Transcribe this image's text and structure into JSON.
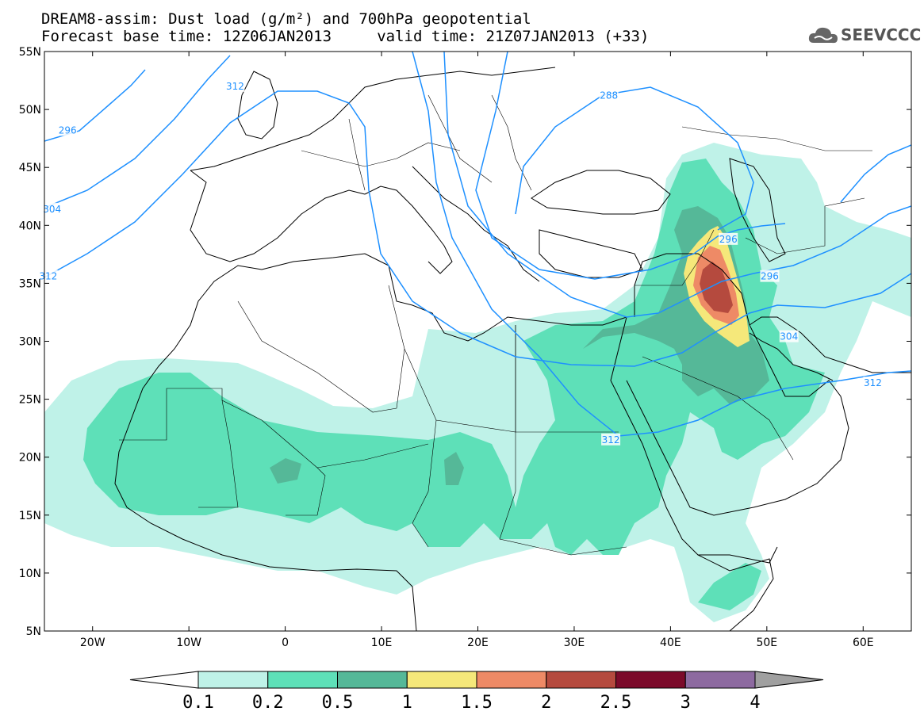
{
  "header": {
    "line1": "DREAM8-assim: Dust load (g/m²) and 700hPa geopotential",
    "line2": "Forecast base time: 12Z06JAN2013     valid time: 21Z07JAN2013 (+33)"
  },
  "logo": {
    "text": "SEEVCCC",
    "icon": "cloud-icon"
  },
  "map": {
    "lon_range": [
      -25,
      65
    ],
    "lat_range": [
      5,
      55
    ],
    "lat_ticks": [
      {
        "v": 55,
        "label": "55N"
      },
      {
        "v": 50,
        "label": "50N"
      },
      {
        "v": 45,
        "label": "45N"
      },
      {
        "v": 40,
        "label": "40N"
      },
      {
        "v": 35,
        "label": "35N"
      },
      {
        "v": 30,
        "label": "30N"
      },
      {
        "v": 25,
        "label": "25N"
      },
      {
        "v": 20,
        "label": "20N"
      },
      {
        "v": 15,
        "label": "15N"
      },
      {
        "v": 10,
        "label": "10N"
      },
      {
        "v": 5,
        "label": "5N"
      }
    ],
    "lon_ticks": [
      {
        "v": -20,
        "label": "20W"
      },
      {
        "v": -10,
        "label": "10W"
      },
      {
        "v": 0,
        "label": "0"
      },
      {
        "v": 10,
        "label": "10E"
      },
      {
        "v": 20,
        "label": "20E"
      },
      {
        "v": 30,
        "label": "30E"
      },
      {
        "v": 40,
        "label": "40E"
      },
      {
        "v": 50,
        "label": "50E"
      },
      {
        "v": 60,
        "label": "60E"
      }
    ],
    "contour_color": "#1e90ff",
    "contour_labels": [
      {
        "text": "312",
        "lon": -5.2,
        "lat": 52.0
      },
      {
        "text": "296",
        "lon": -22.6,
        "lat": 48.2
      },
      {
        "text": "304",
        "lon": -24.2,
        "lat": 41.4
      },
      {
        "text": "312",
        "lon": -24.6,
        "lat": 35.6
      },
      {
        "text": "288",
        "lon": 33.6,
        "lat": 51.2
      },
      {
        "text": "296",
        "lon": 50.3,
        "lat": 35.6
      },
      {
        "text": "304",
        "lon": 52.3,
        "lat": 30.4
      },
      {
        "text": "312",
        "lon": 61.0,
        "lat": 26.4
      },
      {
        "text": "312",
        "lon": 33.8,
        "lat": 21.5
      },
      {
        "text": "296",
        "lon": 46.0,
        "lat": 38.8
      }
    ]
  },
  "colorbar": {
    "levels": [
      "0.1",
      "0.2",
      "0.5",
      "1",
      "1.5",
      "2",
      "2.5",
      "3",
      "4"
    ],
    "colors": [
      "#bff2e8",
      "#5ee0b8",
      "#55b898",
      "#f5e87a",
      "#ee8a66",
      "#b54a3e",
      "#7b0a2a",
      "#8d6aa0"
    ],
    "under_color": "#ffffff",
    "over_color": "#a0a0a0"
  }
}
